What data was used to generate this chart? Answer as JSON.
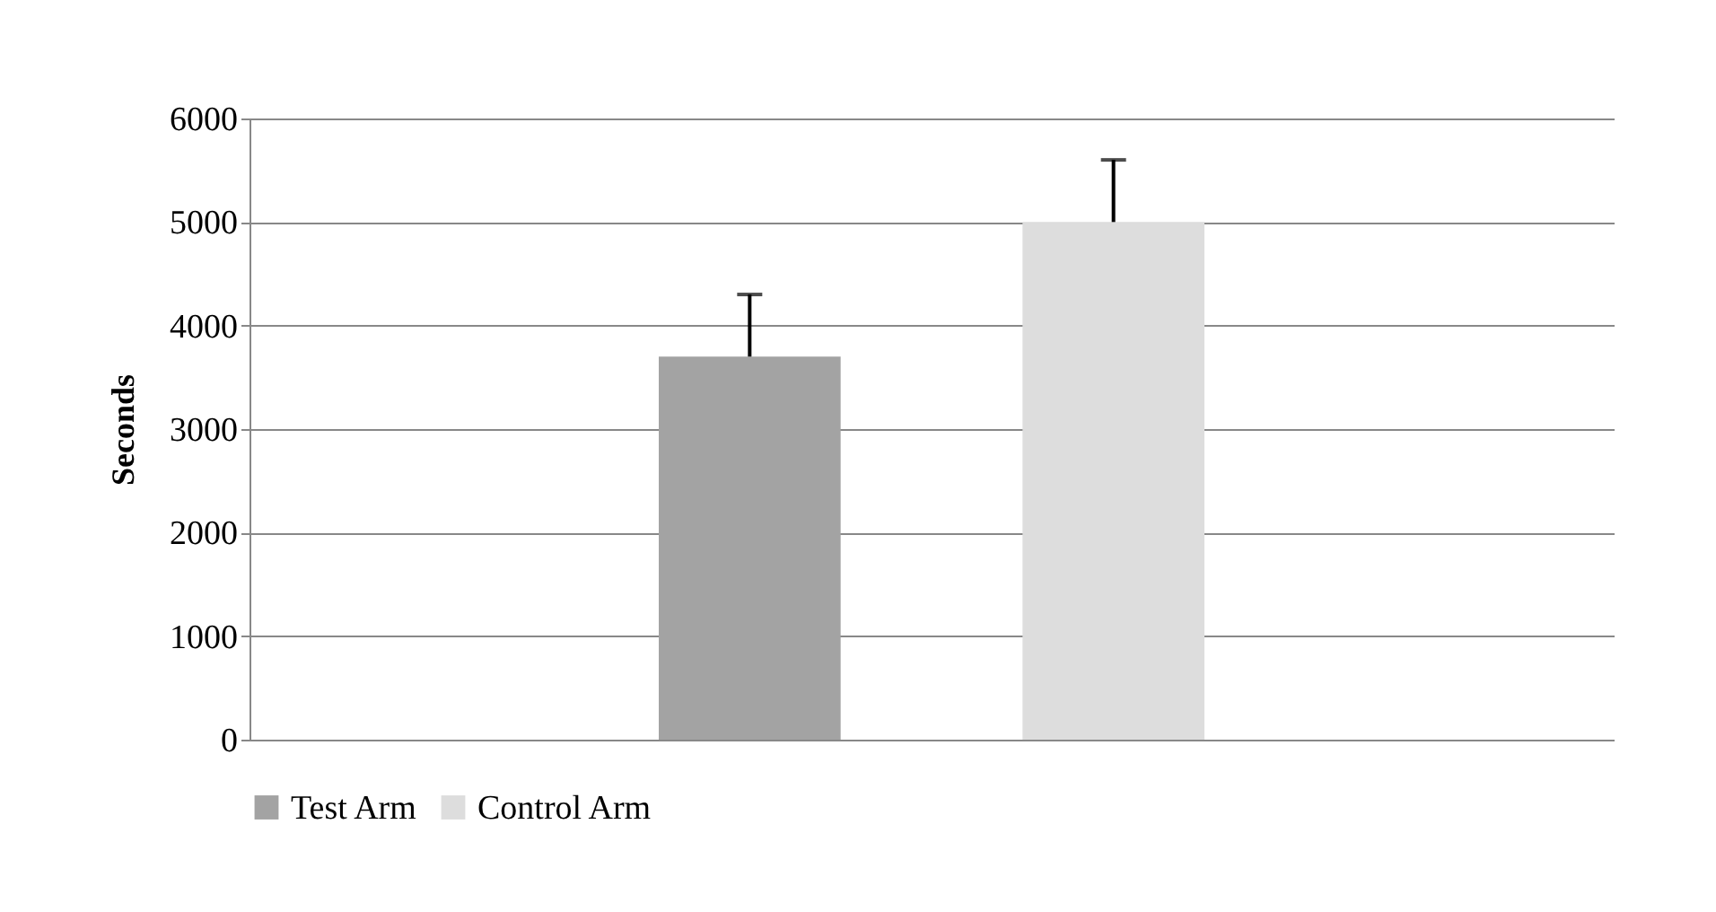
{
  "chart_data": {
    "type": "bar",
    "ylabel": "Seconds",
    "categories": [
      null
    ],
    "series": [
      {
        "name": "Test Arm",
        "color": "#a3a3a3",
        "values": [
          3700
        ],
        "errors": [
          600
        ]
      },
      {
        "name": "Control Arm",
        "color": "#dddddd",
        "values": [
          5000
        ],
        "errors": [
          600
        ]
      }
    ],
    "ylim": [
      0,
      6000
    ],
    "yticks": [
      0,
      1000,
      2000,
      3000,
      4000,
      5000,
      6000
    ],
    "grid": "y",
    "legend": "bottom"
  }
}
